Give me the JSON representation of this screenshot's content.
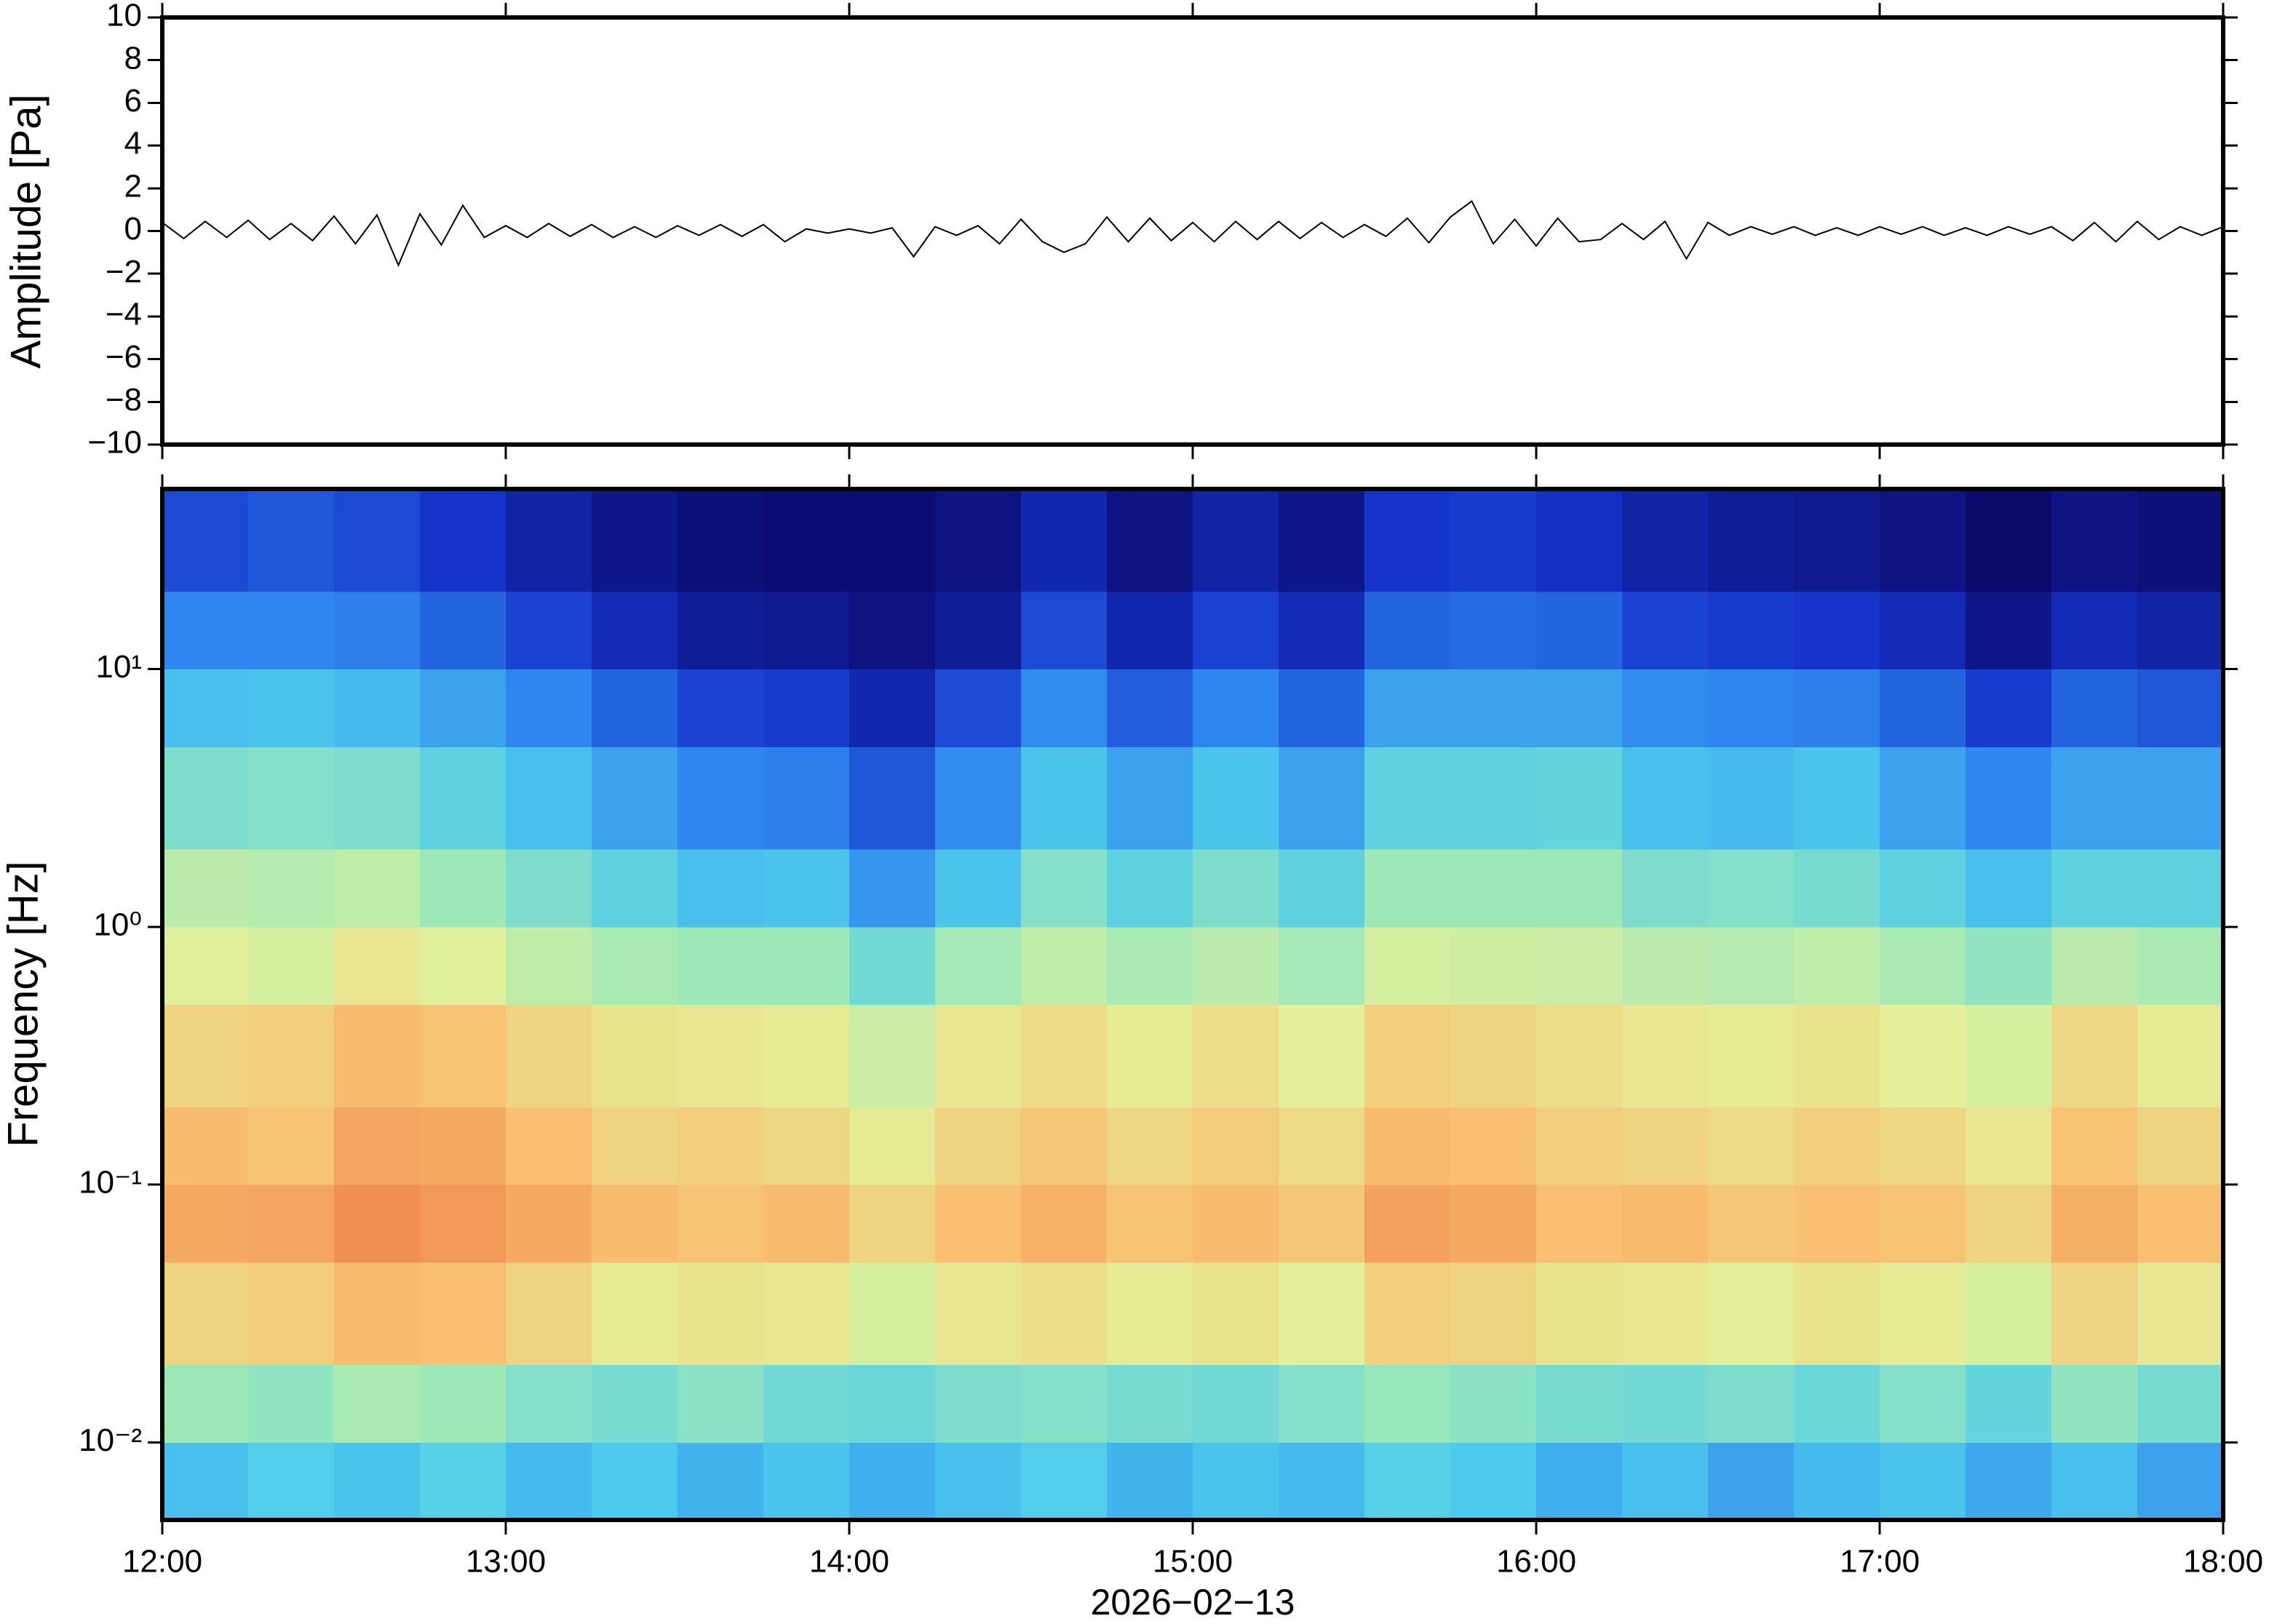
{
  "chart_data": [
    {
      "type": "line",
      "ylabel": "Amplitude [Pa]",
      "color": "#000000",
      "xlim": [
        12,
        18
      ],
      "xticks": [
        12,
        13,
        14,
        15,
        16,
        17,
        18
      ],
      "ylim": [
        -10,
        10
      ],
      "yticks": [
        {
          "value": -10,
          "label": "−10"
        },
        {
          "value": -8,
          "label": "−8"
        },
        {
          "value": -6,
          "label": "−6"
        },
        {
          "value": -4,
          "label": "−4"
        },
        {
          "value": -2,
          "label": "−2"
        },
        0,
        2,
        4,
        6,
        8,
        10
      ],
      "x": [
        12,
        12.0625,
        12.125,
        12.1875,
        12.25,
        12.3125,
        12.375,
        12.4375,
        12.5,
        12.5625,
        12.625,
        12.6875,
        12.75,
        12.8125,
        12.875,
        12.9375,
        13,
        13.0625,
        13.125,
        13.1875,
        13.25,
        13.3125,
        13.375,
        13.4375,
        13.5,
        13.5625,
        13.625,
        13.6875,
        13.75,
        13.8125,
        13.875,
        13.9375,
        14,
        14.0625,
        14.125,
        14.1875,
        14.25,
        14.3125,
        14.375,
        14.4375,
        14.5,
        14.5625,
        14.625,
        14.6875,
        14.75,
        14.8125,
        14.875,
        14.9375,
        15,
        15.0625,
        15.125,
        15.1875,
        15.25,
        15.3125,
        15.375,
        15.4375,
        15.5,
        15.5625,
        15.625,
        15.6875,
        15.75,
        15.8125,
        15.875,
        15.9375,
        16,
        16.0625,
        16.125,
        16.1875,
        16.25,
        16.3125,
        16.375,
        16.4375,
        16.5,
        16.5625,
        16.625,
        16.6875,
        16.75,
        16.8125,
        16.875,
        16.9375,
        17,
        17.0625,
        17.125,
        17.1875,
        17.25,
        17.3125,
        17.375,
        17.4375,
        17.5,
        17.5625,
        17.625,
        17.6875,
        17.75,
        17.8125,
        17.875,
        17.9375,
        18
      ],
      "values": [
        0.4,
        -0.35,
        0.45,
        -0.3,
        0.5,
        -0.4,
        0.35,
        -0.45,
        0.7,
        -0.6,
        0.75,
        -1.6,
        0.8,
        -0.65,
        1.2,
        -0.3,
        0.25,
        -0.3,
        0.35,
        -0.25,
        0.3,
        -0.3,
        0.2,
        -0.3,
        0.25,
        -0.2,
        0.3,
        -0.25,
        0.3,
        -0.5,
        0.1,
        -0.1,
        0.1,
        -0.1,
        0.15,
        -1.2,
        0.2,
        -0.2,
        0.25,
        -0.6,
        0.55,
        -0.5,
        -1.0,
        -0.6,
        0.65,
        -0.5,
        0.6,
        -0.45,
        0.4,
        -0.5,
        0.45,
        -0.4,
        0.45,
        -0.35,
        0.4,
        -0.3,
        0.3,
        -0.25,
        0.6,
        -0.55,
        0.65,
        1.4,
        -0.6,
        0.55,
        -0.7,
        0.6,
        -0.5,
        -0.4,
        0.35,
        -0.4,
        0.45,
        -1.3,
        0.4,
        -0.2,
        0.2,
        -0.15,
        0.2,
        -0.2,
        0.15,
        -0.2,
        0.2,
        -0.15,
        0.2,
        -0.2,
        0.15,
        -0.2,
        0.2,
        -0.15,
        0.2,
        -0.45,
        0.4,
        -0.5,
        0.45,
        -0.4,
        0.2,
        -0.2,
        0.2
      ]
    },
    {
      "type": "heatmap",
      "ylabel": "Frequency [Hz]",
      "xlabel": "2026−02−13",
      "log_y": true,
      "xlim": [
        12,
        18
      ],
      "xticks": [
        {
          "value": 12,
          "label": "12:00"
        },
        {
          "value": 13,
          "label": "13:00"
        },
        {
          "value": 14,
          "label": "14:00"
        },
        {
          "value": 15,
          "label": "15:00"
        },
        {
          "value": 16,
          "label": "16:00"
        },
        {
          "value": 17,
          "label": "17:00"
        },
        {
          "value": 18,
          "label": "18:00"
        }
      ],
      "ylim": [
        0.005,
        50
      ],
      "yticks": [
        {
          "value": 0.01,
          "label": "10⁻²"
        },
        {
          "value": 0.1,
          "label": "10⁻¹"
        },
        {
          "value": 1,
          "label": "10⁰"
        },
        {
          "value": 10,
          "label": "10¹"
        }
      ],
      "colormap": [
        "#0b0a6a",
        "#1432c8",
        "#2f86ee",
        "#4fcdec",
        "#9ee8b8",
        "#e4f09a",
        "#f8c070",
        "#f08a4e",
        "#e0503c"
      ],
      "zlim": [
        0,
        10
      ],
      "x": [
        12,
        12.25,
        12.5,
        12.75,
        13,
        13.25,
        13.5,
        13.75,
        14,
        14.25,
        14.5,
        14.75,
        15,
        15.25,
        15.5,
        15.75,
        16,
        16.25,
        16.5,
        16.75,
        17,
        17.25,
        17.5,
        17.75,
        18
      ],
      "y": [
        0.005,
        0.01,
        0.02,
        0.05,
        0.1,
        0.2,
        0.5,
        1,
        2,
        5,
        10,
        20,
        50
      ],
      "values": [
        [
          3.5,
          3.8,
          3.6,
          3.9,
          3.4,
          3.7,
          3.3,
          3.6,
          3.2,
          3.5,
          3.8,
          3.3,
          3.6,
          3.4,
          3.9,
          3.7,
          3.2,
          3.5,
          3.0,
          3.4,
          3.6,
          3.1,
          3.5,
          3.0
        ],
        [
          5.0,
          4.8,
          5.2,
          5.0,
          4.6,
          4.4,
          4.7,
          4.3,
          4.2,
          4.5,
          4.6,
          4.4,
          4.3,
          4.6,
          4.9,
          4.7,
          4.4,
          4.3,
          4.5,
          4.2,
          4.6,
          4.1,
          4.8,
          4.4
        ],
        [
          7.0,
          7.2,
          7.6,
          7.5,
          7.0,
          6.4,
          6.6,
          6.5,
          6.0,
          6.5,
          6.7,
          6.4,
          6.6,
          6.3,
          7.1,
          7.0,
          6.6,
          6.5,
          6.3,
          6.6,
          6.4,
          6.0,
          7.0,
          6.5
        ],
        [
          8.0,
          8.1,
          8.6,
          8.4,
          8.0,
          7.6,
          7.4,
          7.6,
          7.0,
          7.5,
          7.8,
          7.4,
          7.6,
          7.3,
          8.2,
          8.0,
          7.5,
          7.6,
          7.3,
          7.5,
          7.4,
          7.0,
          7.9,
          7.5
        ],
        [
          7.6,
          7.4,
          8.1,
          8.0,
          7.5,
          7.0,
          7.1,
          6.9,
          6.4,
          7.0,
          7.3,
          6.9,
          7.2,
          6.8,
          7.6,
          7.5,
          7.1,
          7.0,
          6.8,
          7.1,
          6.9,
          6.5,
          7.4,
          7.0
        ],
        [
          7.0,
          7.1,
          7.6,
          7.4,
          7.0,
          6.6,
          6.5,
          6.4,
          5.8,
          6.5,
          6.8,
          6.4,
          6.7,
          6.3,
          7.1,
          7.0,
          6.7,
          6.5,
          6.4,
          6.6,
          6.3,
          6.0,
          6.9,
          6.4
        ],
        [
          6.2,
          6.0,
          6.5,
          6.2,
          5.6,
          5.2,
          5.0,
          5.0,
          4.3,
          5.1,
          5.6,
          5.2,
          5.5,
          5.1,
          6.0,
          5.9,
          5.8,
          5.5,
          5.4,
          5.6,
          5.2,
          4.8,
          5.5,
          5.2
        ],
        [
          5.5,
          5.4,
          5.6,
          5.0,
          4.5,
          4.0,
          3.5,
          3.6,
          2.8,
          3.6,
          4.6,
          4.0,
          4.5,
          4.0,
          5.0,
          5.0,
          5.0,
          4.5,
          4.6,
          4.4,
          4.0,
          3.5,
          4.0,
          4.0
        ],
        [
          4.5,
          4.6,
          4.5,
          4.0,
          3.5,
          3.0,
          2.5,
          2.4,
          1.8,
          2.6,
          3.6,
          3.0,
          3.6,
          3.0,
          4.0,
          4.0,
          4.1,
          3.5,
          3.4,
          3.6,
          3.0,
          2.5,
          3.0,
          3.0
        ],
        [
          3.5,
          3.6,
          3.4,
          3.0,
          2.5,
          2.0,
          1.5,
          1.4,
          0.9,
          1.6,
          2.6,
          1.9,
          2.5,
          2.0,
          3.0,
          3.0,
          3.0,
          2.6,
          2.5,
          2.4,
          2.0,
          1.4,
          2.0,
          1.8
        ],
        [
          2.5,
          2.5,
          2.4,
          2.0,
          1.5,
          1.0,
          0.6,
          0.5,
          0.3,
          0.6,
          1.6,
          0.9,
          1.5,
          1.0,
          2.0,
          2.1,
          2.0,
          1.5,
          1.4,
          1.3,
          1.0,
          0.4,
          1.0,
          0.8
        ],
        [
          1.6,
          1.8,
          1.6,
          1.3,
          0.8,
          0.4,
          0.2,
          0.1,
          0.1,
          0.3,
          0.9,
          0.3,
          0.8,
          0.4,
          1.3,
          1.4,
          1.2,
          0.8,
          0.6,
          0.5,
          0.3,
          0.0,
          0.3,
          0.2
        ]
      ]
    }
  ]
}
